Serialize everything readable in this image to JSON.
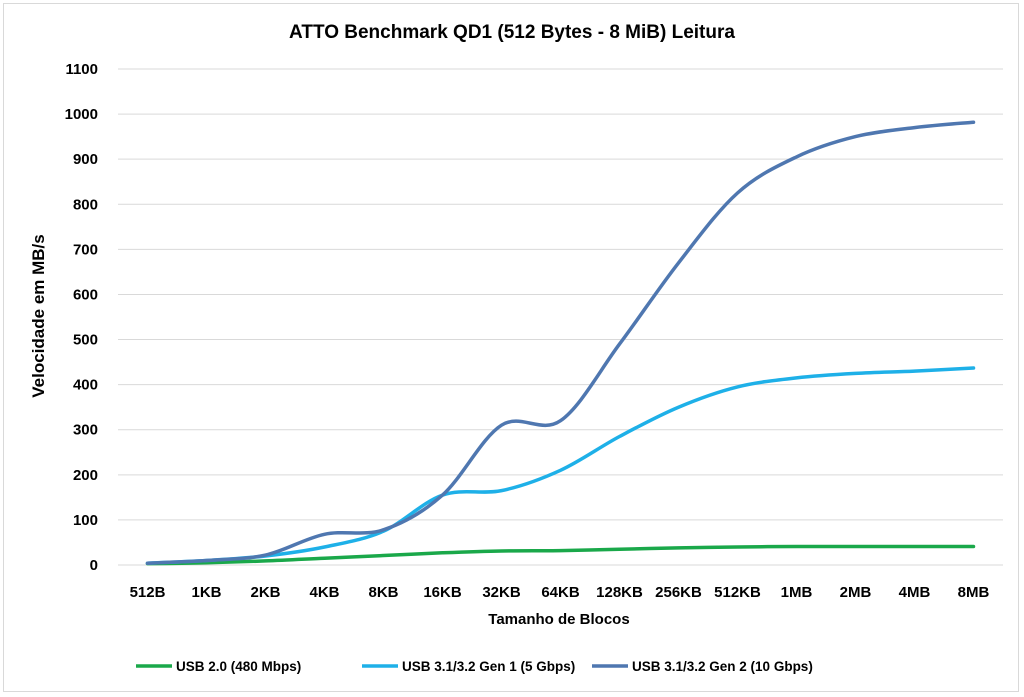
{
  "chart_data": {
    "type": "line",
    "title": "ATTO Benchmark QD1 (512 Bytes - 8 MiB) Leitura",
    "xlabel": "Tamanho de Blocos",
    "ylabel": "Velocidade em MB/s",
    "ylim": [
      0,
      1100
    ],
    "yticks": [
      0,
      100,
      200,
      300,
      400,
      500,
      600,
      700,
      800,
      900,
      1000,
      1100
    ],
    "grid": true,
    "legend": "bottom",
    "categories": [
      "512B",
      "1KB",
      "2KB",
      "4KB",
      "8KB",
      "16KB",
      "32KB",
      "64KB",
      "128KB",
      "256KB",
      "512KB",
      "1MB",
      "2MB",
      "4MB",
      "8MB"
    ],
    "series": [
      {
        "name": "USB 2.0 (480 Mbps)",
        "color": "#1aa84a",
        "values": [
          3,
          5,
          9,
          15,
          21,
          27,
          31,
          32,
          35,
          38,
          40,
          41,
          41,
          41,
          41
        ]
      },
      {
        "name": "USB 3.1/3.2 Gen 1 (5 Gbps)",
        "color": "#1eb0e8",
        "values": [
          4,
          10,
          20,
          40,
          75,
          155,
          165,
          210,
          285,
          350,
          395,
          415,
          425,
          430,
          437
        ]
      },
      {
        "name": "USB 3.1/3.2 Gen 2 (10 Gbps)",
        "color": "#4f77b0",
        "values": [
          4,
          10,
          22,
          68,
          78,
          155,
          310,
          320,
          490,
          670,
          825,
          905,
          950,
          970,
          982
        ]
      }
    ]
  }
}
